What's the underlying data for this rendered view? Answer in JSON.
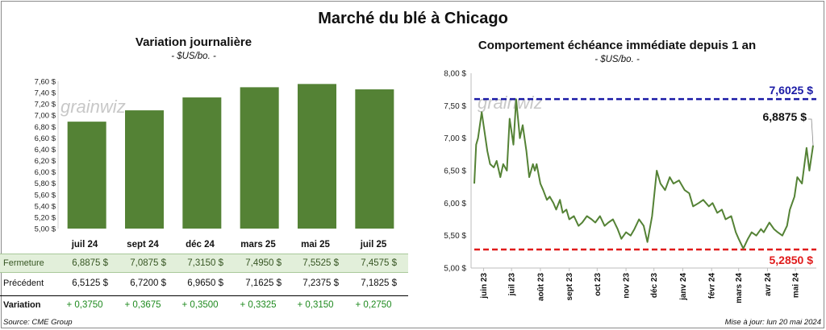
{
  "title": "Marché du blé à Chicago",
  "source": "Source: CME Group",
  "updated": "Mise à jour: lun 20 mai 2024",
  "watermark": "grainwiz",
  "colors": {
    "bar": "#548235",
    "line": "#548235",
    "high": "#1a1aa6",
    "low": "#e01b1b",
    "close_row_bg": "#e2efda"
  },
  "chart_data": [
    {
      "type": "bar",
      "title": "Variation journalière",
      "subtitle": "- $US/bo. -",
      "categories": [
        "juil 24",
        "sept 24",
        "déc 24",
        "mars 25",
        "mai 25",
        "juil 25"
      ],
      "values": [
        6.8875,
        7.0875,
        7.315,
        7.495,
        7.5525,
        7.4575
      ],
      "ylim": [
        5.0,
        7.6
      ],
      "yticks": [
        "5,00 $",
        "5,20 $",
        "5,40 $",
        "5,60 $",
        "5,80 $",
        "6,00 $",
        "6,20 $",
        "6,40 $",
        "6,60 $",
        "6,80 $",
        "7,00 $",
        "7,20 $",
        "7,40 $",
        "7,60 $"
      ],
      "grid": false
    },
    {
      "type": "line",
      "title": "Comportement  échéance immédiate depuis 1 an",
      "subtitle": "- $US/bo. -",
      "ylim": [
        5.0,
        8.0
      ],
      "yticks": [
        "5,00 $",
        "5,50 $",
        "6,00 $",
        "6,50 $",
        "7,00 $",
        "7,50 $",
        "8,00 $"
      ],
      "xticks": [
        "juin 23",
        "juil 23",
        "août 23",
        "sept 23",
        "oct 23",
        "nov 23",
        "déc 23",
        "janv 24",
        "févr 24",
        "mars 24",
        "avr 24",
        "mai 24"
      ],
      "x_start": "2023-05-22",
      "x_end": "2024-05-20",
      "high": {
        "value": 7.6025,
        "label": "7,6025 $"
      },
      "low": {
        "value": 5.285,
        "label": "5,2850 $"
      },
      "last": {
        "value": 6.8875,
        "label": "6,8875 $"
      },
      "series": [
        {
          "x": [
            "2023-05-22",
            "2023-05-24",
            "2023-05-26",
            "2023-05-30",
            "2023-06-01",
            "2023-06-05",
            "2023-06-08",
            "2023-06-12",
            "2023-06-15",
            "2023-06-19",
            "2023-06-22",
            "2023-06-26",
            "2023-06-29",
            "2023-07-03",
            "2023-07-06",
            "2023-07-10",
            "2023-07-13",
            "2023-07-17",
            "2023-07-20",
            "2023-07-24",
            "2023-07-26",
            "2023-07-28",
            "2023-08-01",
            "2023-08-04",
            "2023-08-08",
            "2023-08-11",
            "2023-08-15",
            "2023-08-18",
            "2023-08-22",
            "2023-08-25",
            "2023-08-29",
            "2023-09-01",
            "2023-09-06",
            "2023-09-11",
            "2023-09-15",
            "2023-09-20",
            "2023-09-25",
            "2023-09-29",
            "2023-10-04",
            "2023-10-09",
            "2023-10-13",
            "2023-10-18",
            "2023-10-23",
            "2023-10-27",
            "2023-11-01",
            "2023-11-06",
            "2023-11-10",
            "2023-11-15",
            "2023-11-20",
            "2023-11-24",
            "2023-11-29",
            "2023-12-04",
            "2023-12-08",
            "2023-12-13",
            "2023-12-18",
            "2023-12-22",
            "2023-12-28",
            "2024-01-03",
            "2024-01-08",
            "2024-01-12",
            "2024-01-18",
            "2024-01-23",
            "2024-01-29",
            "2024-02-02",
            "2024-02-07",
            "2024-02-12",
            "2024-02-16",
            "2024-02-22",
            "2024-02-27",
            "2024-03-01",
            "2024-03-06",
            "2024-03-11",
            "2024-03-15",
            "2024-03-20",
            "2024-03-25",
            "2024-03-28",
            "2024-04-03",
            "2024-04-08",
            "2024-04-12",
            "2024-04-17",
            "2024-04-22",
            "2024-04-25",
            "2024-04-30",
            "2024-05-03",
            "2024-05-08",
            "2024-05-13",
            "2024-05-16",
            "2024-05-20"
          ],
          "y": [
            6.3,
            6.9,
            7.0,
            7.4,
            7.2,
            6.8,
            6.6,
            6.55,
            6.65,
            6.4,
            6.6,
            6.5,
            7.3,
            6.9,
            7.6,
            7.0,
            7.2,
            6.8,
            6.4,
            6.6,
            6.5,
            6.6,
            6.3,
            6.2,
            6.05,
            6.1,
            6.0,
            5.9,
            6.05,
            5.85,
            5.9,
            5.75,
            5.8,
            5.65,
            5.7,
            5.8,
            5.75,
            5.7,
            5.8,
            5.65,
            5.7,
            5.75,
            5.6,
            5.45,
            5.55,
            5.5,
            5.6,
            5.75,
            5.65,
            5.4,
            5.8,
            6.5,
            6.3,
            6.2,
            6.4,
            6.3,
            6.35,
            6.2,
            6.15,
            5.95,
            6.0,
            6.05,
            5.95,
            6.0,
            5.85,
            5.9,
            5.75,
            5.8,
            5.55,
            5.45,
            5.3,
            5.45,
            5.55,
            5.5,
            5.6,
            5.55,
            5.7,
            5.6,
            5.55,
            5.5,
            5.65,
            5.9,
            6.1,
            6.4,
            6.3,
            6.85,
            6.5,
            6.8875
          ]
        }
      ]
    }
  ],
  "table": {
    "columns": [
      "juil 24",
      "sept 24",
      "déc 24",
      "mars 25",
      "mai 25",
      "juil 25"
    ],
    "close_label": "Fermeture",
    "close": [
      "6,8875  $",
      "7,0875  $",
      "7,3150  $",
      "7,4950  $",
      "7,5525  $",
      "7,4575  $"
    ],
    "prev_label": "Précédent",
    "prev": [
      "6,5125  $",
      "6,7200  $",
      "6,9650  $",
      "7,1625  $",
      "7,2375  $",
      "7,1825  $"
    ],
    "change_label": "Variation",
    "change": [
      "+ 0,3750",
      "+ 0,3675",
      "+ 0,3500",
      "+ 0,3325",
      "+ 0,3150",
      "+ 0,2750"
    ]
  }
}
